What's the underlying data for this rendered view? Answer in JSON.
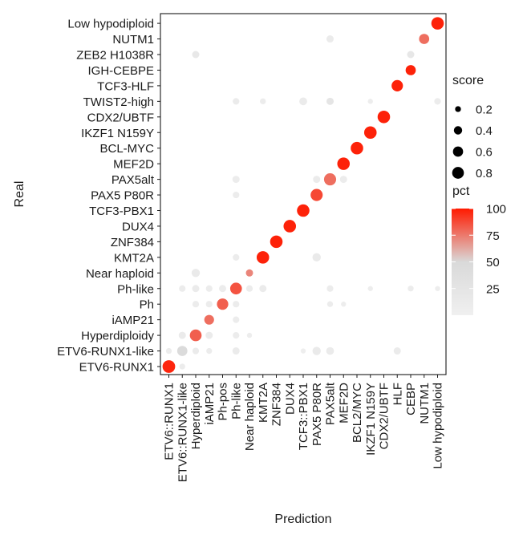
{
  "chart_data": {
    "type": "dotplot",
    "xlabel": "Prediction",
    "ylabel": "Real",
    "categories_x": [
      "ETV6::RUNX1",
      "ETV6::RUNX1-like",
      "Hyperdiploid",
      "iAMP21",
      "Ph-pos",
      "Ph-like",
      "Near haploid",
      "KMT2A",
      "ZNF384",
      "DUX4",
      "TCF3::PBX1",
      "PAX5 P80R",
      "PAX5alt",
      "MEF2D",
      "BCL2/MYC",
      "IKZF1 N159Y",
      "CDX2/UBTF",
      "HLF",
      "CEBP",
      "NUTM1",
      "Low hypodiploid"
    ],
    "categories_y": [
      "ETV6-RUNX1",
      "ETV6-RUNX1-like",
      "Hyperdiploidy",
      "iAMP21",
      "Ph",
      "Ph-like",
      "Near haploid",
      "KMT2A",
      "ZNF384",
      "DUX4",
      "TCF3-PBX1",
      "PAX5 P80R",
      "PAX5alt",
      "MEF2D",
      "BCL-MYC",
      "IKZF1 N159Y",
      "CDX2/UBTF",
      "TWIST2-high",
      "TCF3-HLF",
      "IGH-CEBPE",
      "ZEB2 H1038R",
      "NUTM1",
      "Low hypodiploid"
    ],
    "points": [
      {
        "x": "ETV6::RUNX1",
        "y": "ETV6-RUNX1",
        "score": 0.92,
        "pct": 97
      },
      {
        "x": "ETV6::RUNX1-like",
        "y": "ETV6-RUNX1",
        "score": 0.2,
        "pct": 8
      },
      {
        "x": "ETV6::RUNX1",
        "y": "ETV6-RUNX1-like",
        "score": 0.2,
        "pct": 8
      },
      {
        "x": "ETV6::RUNX1-like",
        "y": "ETV6-RUNX1-like",
        "score": 0.6,
        "pct": 45
      },
      {
        "x": "Hyperdiploid",
        "y": "ETV6-RUNX1-like",
        "score": 0.25,
        "pct": 10
      },
      {
        "x": "iAMP21",
        "y": "ETV6-RUNX1-like",
        "score": 0.2,
        "pct": 8
      },
      {
        "x": "Ph-like",
        "y": "ETV6-RUNX1-like",
        "score": 0.3,
        "pct": 10
      },
      {
        "x": "TCF3::PBX1",
        "y": "ETV6-RUNX1-like",
        "score": 0.15,
        "pct": 5
      },
      {
        "x": "PAX5 P80R",
        "y": "ETV6-RUNX1-like",
        "score": 0.4,
        "pct": 12
      },
      {
        "x": "PAX5alt",
        "y": "ETV6-RUNX1-like",
        "score": 0.35,
        "pct": 10
      },
      {
        "x": "HLF",
        "y": "ETV6-RUNX1-like",
        "score": 0.3,
        "pct": 10
      },
      {
        "x": "ETV6::RUNX1-like",
        "y": "Hyperdiploidy",
        "score": 0.3,
        "pct": 10
      },
      {
        "x": "Hyperdiploid",
        "y": "Hyperdiploidy",
        "score": 0.8,
        "pct": 82
      },
      {
        "x": "iAMP21",
        "y": "Hyperdiploidy",
        "score": 0.3,
        "pct": 10
      },
      {
        "x": "Ph-like",
        "y": "Hyperdiploidy",
        "score": 0.25,
        "pct": 8
      },
      {
        "x": "Near haploid",
        "y": "Hyperdiploidy",
        "score": 0.15,
        "pct": 6
      },
      {
        "x": "iAMP21",
        "y": "iAMP21",
        "score": 0.55,
        "pct": 78
      },
      {
        "x": "Ph-like",
        "y": "iAMP21",
        "score": 0.25,
        "pct": 8
      },
      {
        "x": "Hyperdiploid",
        "y": "Ph",
        "score": 0.25,
        "pct": 8
      },
      {
        "x": "iAMP21",
        "y": "Ph",
        "score": 0.25,
        "pct": 8
      },
      {
        "x": "Ph-pos",
        "y": "Ph",
        "score": 0.75,
        "pct": 82
      },
      {
        "x": "Ph-like",
        "y": "Ph",
        "score": 0.25,
        "pct": 8
      },
      {
        "x": "PAX5alt",
        "y": "Ph",
        "score": 0.2,
        "pct": 8
      },
      {
        "x": "MEF2D",
        "y": "Ph",
        "score": 0.15,
        "pct": 6
      },
      {
        "x": "ETV6::RUNX1-like",
        "y": "Ph-like",
        "score": 0.25,
        "pct": 8
      },
      {
        "x": "Hyperdiploid",
        "y": "Ph-like",
        "score": 0.3,
        "pct": 10
      },
      {
        "x": "iAMP21",
        "y": "Ph-like",
        "score": 0.25,
        "pct": 8
      },
      {
        "x": "Ph-pos",
        "y": "Ph-like",
        "score": 0.3,
        "pct": 8
      },
      {
        "x": "Ph-like",
        "y": "Ph-like",
        "score": 0.8,
        "pct": 85
      },
      {
        "x": "Near haploid",
        "y": "Ph-like",
        "score": 0.25,
        "pct": 8
      },
      {
        "x": "KMT2A",
        "y": "Ph-like",
        "score": 0.3,
        "pct": 10
      },
      {
        "x": "PAX5alt",
        "y": "Ph-like",
        "score": 0.25,
        "pct": 8
      },
      {
        "x": "IKZF1 N159Y",
        "y": "Ph-like",
        "score": 0.15,
        "pct": 6
      },
      {
        "x": "CEBP",
        "y": "Ph-like",
        "score": 0.2,
        "pct": 8
      },
      {
        "x": "Low hypodiploid",
        "y": "Ph-like",
        "score": 0.15,
        "pct": 6
      },
      {
        "x": "Hyperdiploid",
        "y": "Near haploid",
        "score": 0.4,
        "pct": 12
      },
      {
        "x": "Near haploid",
        "y": "Near haploid",
        "score": 0.3,
        "pct": 72
      },
      {
        "x": "Ph-like",
        "y": "KMT2A",
        "score": 0.25,
        "pct": 8
      },
      {
        "x": "KMT2A",
        "y": "KMT2A",
        "score": 0.9,
        "pct": 98
      },
      {
        "x": "PAX5 P80R",
        "y": "KMT2A",
        "score": 0.4,
        "pct": 12
      },
      {
        "x": "ZNF384",
        "y": "ZNF384",
        "score": 0.9,
        "pct": 98
      },
      {
        "x": "DUX4",
        "y": "DUX4",
        "score": 0.9,
        "pct": 98
      },
      {
        "x": "TCF3::PBX1",
        "y": "TCF3-PBX1",
        "score": 0.9,
        "pct": 98
      },
      {
        "x": "PAX5 P80R",
        "y": "PAX5 P80R",
        "score": 0.85,
        "pct": 88
      },
      {
        "x": "Ph-like",
        "y": "PAX5 P80R",
        "score": 0.25,
        "pct": 8
      },
      {
        "x": "Ph-like",
        "y": "PAX5alt",
        "score": 0.3,
        "pct": 8
      },
      {
        "x": "PAX5 P80R",
        "y": "PAX5alt",
        "score": 0.3,
        "pct": 10
      },
      {
        "x": "PAX5alt",
        "y": "PAX5alt",
        "score": 0.85,
        "pct": 78
      },
      {
        "x": "MEF2D",
        "y": "PAX5alt",
        "score": 0.3,
        "pct": 8
      },
      {
        "x": "MEF2D",
        "y": "MEF2D",
        "score": 0.9,
        "pct": 98
      },
      {
        "x": "BCL2/MYC",
        "y": "BCL-MYC",
        "score": 0.9,
        "pct": 98
      },
      {
        "x": "IKZF1 N159Y",
        "y": "IKZF1 N159Y",
        "score": 0.9,
        "pct": 98
      },
      {
        "x": "CDX2/UBTF",
        "y": "CDX2/UBTF",
        "score": 0.9,
        "pct": 98
      },
      {
        "x": "Ph-like",
        "y": "TWIST2-high",
        "score": 0.25,
        "pct": 10
      },
      {
        "x": "KMT2A",
        "y": "TWIST2-high",
        "score": 0.2,
        "pct": 8
      },
      {
        "x": "TCF3::PBX1",
        "y": "TWIST2-high",
        "score": 0.35,
        "pct": 10
      },
      {
        "x": "PAX5alt",
        "y": "TWIST2-high",
        "score": 0.3,
        "pct": 25
      },
      {
        "x": "IKZF1 N159Y",
        "y": "TWIST2-high",
        "score": 0.15,
        "pct": 6
      },
      {
        "x": "Low hypodiploid",
        "y": "TWIST2-high",
        "score": 0.25,
        "pct": 8
      },
      {
        "x": "HLF",
        "y": "TCF3-HLF",
        "score": 0.75,
        "pct": 98
      },
      {
        "x": "CEBP",
        "y": "IGH-CEBPE",
        "score": 0.6,
        "pct": 98
      },
      {
        "x": "Hyperdiploid",
        "y": "ZEB2 H1038R",
        "score": 0.3,
        "pct": 18
      },
      {
        "x": "CEBP",
        "y": "ZEB2 H1038R",
        "score": 0.3,
        "pct": 20
      },
      {
        "x": "PAX5alt",
        "y": "NUTM1",
        "score": 0.3,
        "pct": 10
      },
      {
        "x": "NUTM1",
        "y": "NUTM1",
        "score": 0.6,
        "pct": 78
      },
      {
        "x": "Low hypodiploid",
        "y": "Low hypodiploid",
        "score": 0.9,
        "pct": 98
      }
    ],
    "size_legend": {
      "title": "score",
      "values": [
        "0.2",
        "0.4",
        "0.6",
        "0.8"
      ],
      "levels": [
        0.2,
        0.4,
        0.6,
        0.8
      ]
    },
    "color_legend": {
      "title": "pct",
      "ticks": [
        "100",
        "75",
        "50",
        "25"
      ],
      "tick_values": [
        100,
        75,
        50,
        25
      ],
      "range": [
        0,
        100
      ],
      "low_color": "#f0f0f0",
      "mid_color": "#d9d9d9",
      "high_color": "#ff1a00"
    },
    "grid": false
  }
}
